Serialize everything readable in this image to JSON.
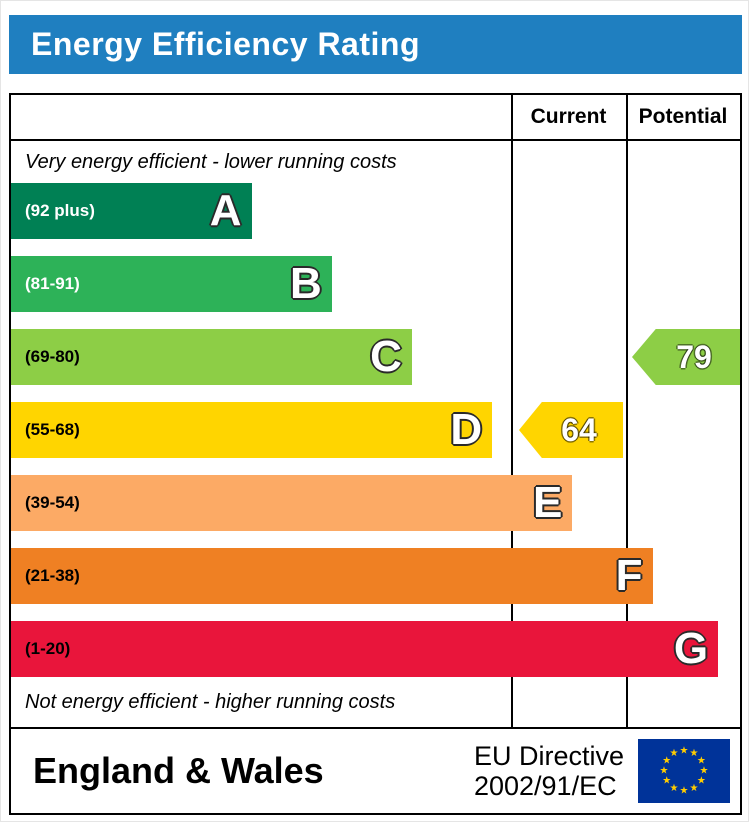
{
  "title": "Energy Efficiency Rating",
  "header": {
    "current": "Current",
    "potential": "Potential"
  },
  "notes": {
    "top": "Very energy efficient - lower running costs",
    "bottom": "Not energy efficient - higher running costs"
  },
  "bands": [
    {
      "letter": "A",
      "range": "(92 plus)",
      "color": "#008054",
      "width_pct": 33,
      "range_color": "#ffffff"
    },
    {
      "letter": "B",
      "range": "(81-91)",
      "color": "#2db258",
      "width_pct": 44,
      "range_color": "#ffffff"
    },
    {
      "letter": "C",
      "range": "(69-80)",
      "color": "#8dce46",
      "width_pct": 55,
      "range_color": "#000000"
    },
    {
      "letter": "D",
      "range": "(55-68)",
      "color": "#ffd500",
      "width_pct": 66,
      "range_color": "#000000"
    },
    {
      "letter": "E",
      "range": "(39-54)",
      "color": "#fcaa65",
      "width_pct": 77,
      "range_color": "#000000"
    },
    {
      "letter": "F",
      "range": "(21-38)",
      "color": "#ef8023",
      "width_pct": 88,
      "range_color": "#000000"
    },
    {
      "letter": "G",
      "range": "(1-20)",
      "color": "#e9153b",
      "width_pct": 97,
      "range_color": "#000000"
    }
  ],
  "ratings": {
    "current": {
      "value": "64",
      "band_index": 3,
      "color": "#ffd500"
    },
    "potential": {
      "value": "79",
      "band_index": 2,
      "color": "#8dce46"
    }
  },
  "footer": {
    "region": "England & Wales",
    "directive_line1": "EU Directive",
    "directive_line2": "2002/91/EC"
  },
  "colors": {
    "banner": "#1f7fc0",
    "border": "#000000",
    "flag_blue": "#003399",
    "star_yellow": "#ffcc00"
  },
  "chart_data": {
    "type": "bar",
    "title": "Energy Efficiency Rating",
    "categories": [
      "A (92 plus)",
      "B (81-91)",
      "C (69-80)",
      "D (55-68)",
      "E (39-54)",
      "F (21-38)",
      "G (1-20)"
    ],
    "series": [
      {
        "name": "band_bar_relative_width",
        "values": [
          33,
          44,
          55,
          66,
          77,
          88,
          97
        ]
      }
    ],
    "markers": [
      {
        "name": "Current",
        "value": 64,
        "band": "D"
      },
      {
        "name": "Potential",
        "value": 79,
        "band": "C"
      }
    ],
    "band_ranges": {
      "A": "92 plus",
      "B": "81-91",
      "C": "69-80",
      "D": "55-68",
      "E": "39-54",
      "F": "21-38",
      "G": "1-20"
    },
    "xlabel": "",
    "ylabel": "",
    "legend": [
      "Current",
      "Potential"
    ],
    "legend_position": "top-right-columns",
    "grid": false,
    "annotations": [
      "Very energy efficient - lower running costs",
      "Not energy efficient - higher running costs"
    ]
  }
}
